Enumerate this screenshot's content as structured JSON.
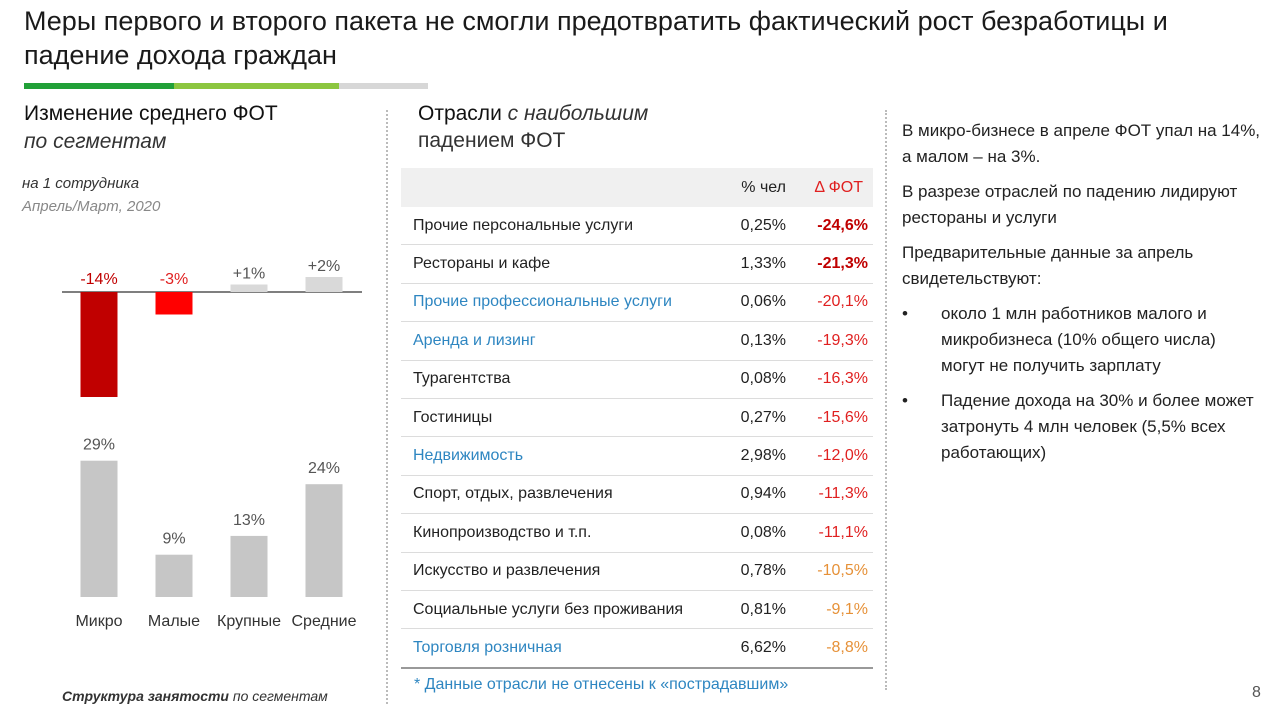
{
  "title": "Меры первого и второго пакета не смогли предотвратить фактический рост безработицы и падение дохода граждан",
  "left": {
    "heading": "Изменение среднего ФОТ",
    "heading_italic": "по сегментам",
    "sub1": "на 1 сотрудника",
    "sub2": "Апрель/Март, 2020",
    "footer_bold": "Структура занятости",
    "footer_rest": " по сегментам"
  },
  "chart_data": [
    {
      "type": "bar",
      "categories": [
        "Микро",
        "Малые",
        "Крупные",
        "Средние"
      ],
      "values": [
        -14,
        -3,
        1,
        2
      ],
      "labels": [
        "-14%",
        "-3%",
        "+1%",
        "+2%"
      ],
      "colors": [
        "#c00000",
        "#ff0000",
        "#d9d9d9",
        "#d9d9d9"
      ]
    },
    {
      "type": "bar",
      "categories": [
        "Микро",
        "Малые",
        "Крупные",
        "Средние"
      ],
      "values": [
        29,
        9,
        13,
        24
      ],
      "labels": [
        "29%",
        "9%",
        "13%",
        "24%"
      ],
      "colors": [
        "#c6c6c6",
        "#c6c6c6",
        "#c6c6c6",
        "#c6c6c6"
      ]
    }
  ],
  "middle": {
    "heading_plain": "Отрасли",
    "heading_italic": "с наибольшим",
    "heading_line2": "падением ФОТ",
    "col_pct": "% чел",
    "col_delta": "Δ ФОТ",
    "rows": [
      {
        "name": "Прочие персональные услуги",
        "pct": "0,25%",
        "delta": "-24,6%",
        "blue": false,
        "style": "d-bold"
      },
      {
        "name": "Рестораны и кафе",
        "pct": "1,33%",
        "delta": "-21,3%",
        "blue": false,
        "style": "d-bold"
      },
      {
        "name": "Прочие профессиональные услуги",
        "pct": "0,06%",
        "delta": "-20,1%",
        "blue": true,
        "style": "d-red"
      },
      {
        "name": "Аренда и лизинг",
        "pct": "0,13%",
        "delta": "-19,3%",
        "blue": true,
        "style": "d-red"
      },
      {
        "name": "Турагентства",
        "pct": "0,08%",
        "delta": "-16,3%",
        "blue": false,
        "style": "d-red"
      },
      {
        "name": "Гостиницы",
        "pct": "0,27%",
        "delta": "-15,6%",
        "blue": false,
        "style": "d-red"
      },
      {
        "name": "Недвижимость",
        "pct": "2,98%",
        "delta": "-12,0%",
        "blue": true,
        "style": "d-red"
      },
      {
        "name": "Спорт, отдых, развлечения",
        "pct": "0,94%",
        "delta": "-11,3%",
        "blue": false,
        "style": "d-red"
      },
      {
        "name": "Кинопроизводство и т.п.",
        "pct": "0,08%",
        "delta": "-11,1%",
        "blue": false,
        "style": "d-red"
      },
      {
        "name": "Искусство и развлечения",
        "pct": "0,78%",
        "delta": "-10,5%",
        "blue": false,
        "style": "d-orange"
      },
      {
        "name": "Социальные услуги без проживания",
        "pct": "0,81%",
        "delta": "-9,1%",
        "blue": false,
        "style": "d-orange"
      },
      {
        "name": "Торговля розничная",
        "pct": "6,62%",
        "delta": "-8,8%",
        "blue": true,
        "style": "d-orange"
      }
    ],
    "footnote": "* Данные отрасли не отнесены к «пострадавшим»"
  },
  "right": {
    "p1": "В микро-бизнесе в апреле ФОТ упал на 14%, а малом – на 3%.",
    "p2": "В разрезе отраслей по падению лидируют рестораны и услуги",
    "p3": "Предварительные данные за апрель свидетельствуют:",
    "bullet_char": "•",
    "bullets": [
      "около 1 млн работников малого и микробизнеса (10% общего числа) могут не получить зарплату",
      "Падение дохода на 30% и более может затронуть 4 млн человек (5,5% всех работающих)"
    ]
  },
  "page_number": "8",
  "colors": {
    "accent_green": "#21a038",
    "accent_light_green": "#8cc63f",
    "link_blue": "#2e86c1",
    "negative_red": "#e02020"
  }
}
